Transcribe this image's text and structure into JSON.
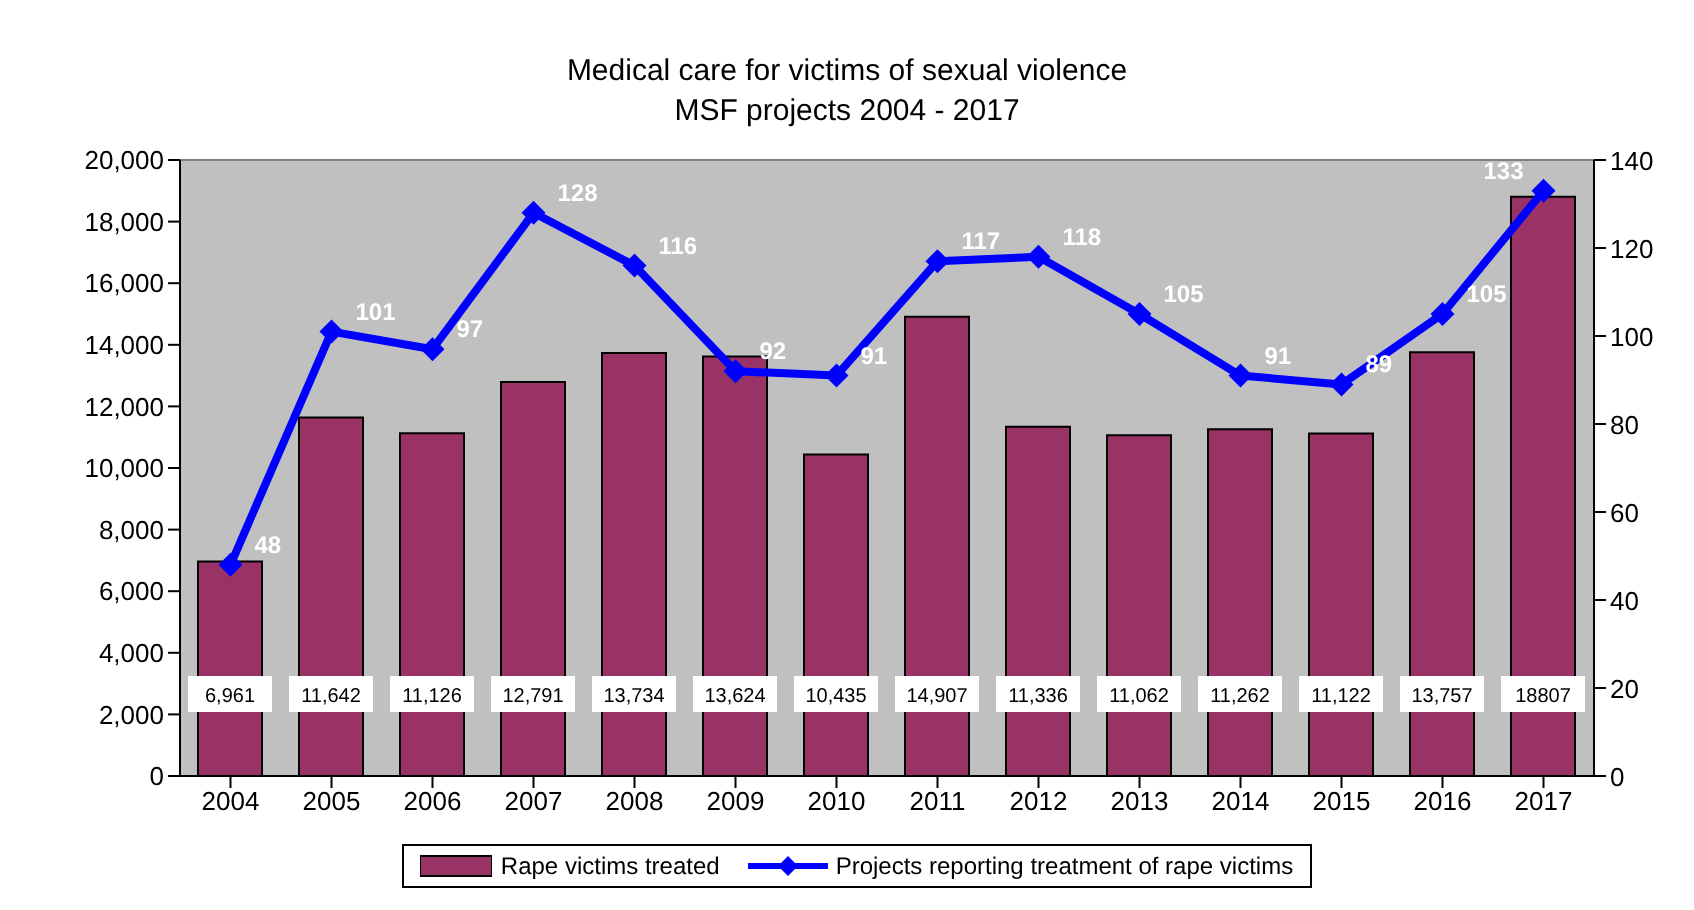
{
  "chart_data": {
    "type": "bar",
    "title": "Medical care for victims of sexual violence",
    "subtitle": "MSF projects 2004 - 2017",
    "categories": [
      "2004",
      "2005",
      "2006",
      "2007",
      "2008",
      "2009",
      "2010",
      "2011",
      "2012",
      "2013",
      "2014",
      "2015",
      "2016",
      "2017"
    ],
    "series": [
      {
        "name": "Rape victims treated",
        "color": "#993366",
        "values": [
          6961,
          11642,
          11126,
          12791,
          13734,
          13624,
          10435,
          14907,
          11336,
          11062,
          11262,
          11122,
          13757,
          18807
        ],
        "value_labels": [
          "6,961",
          "11,642",
          "11,126",
          "12,791",
          "13,734",
          "13,624",
          "10,435",
          "14,907",
          "11,336",
          "11,062",
          "11,262",
          "11,122",
          "13,757",
          "18807"
        ]
      },
      {
        "name": "Projects reporting treatment of rape victims",
        "type": "line",
        "axis": "y2",
        "color": "#0000ff",
        "marker": "diamond",
        "values": [
          48,
          101,
          97,
          128,
          116,
          92,
          91,
          117,
          118,
          105,
          91,
          89,
          105,
          133
        ],
        "value_labels": [
          "48",
          "101",
          "97",
          "128",
          "116",
          "92",
          "91",
          "117",
          "118",
          "105",
          "91",
          "89",
          "105",
          "133"
        ]
      }
    ],
    "ylim": [
      0,
      20000
    ],
    "yticks": [
      {
        "value": 0,
        "label": "0"
      },
      {
        "value": 2000,
        "label": "2,000"
      },
      {
        "value": 4000,
        "label": "4,000"
      },
      {
        "value": 6000,
        "label": "6,000"
      },
      {
        "value": 8000,
        "label": "8,000"
      },
      {
        "value": 10000,
        "label": "10,000"
      },
      {
        "value": 12000,
        "label": "12,000"
      },
      {
        "value": 14000,
        "label": "14,000"
      },
      {
        "value": 16000,
        "label": "16,000"
      },
      {
        "value": 18000,
        "label": "18,000"
      },
      {
        "value": 20000,
        "label": "20,000"
      }
    ],
    "y2lim": [
      0,
      140
    ],
    "y2ticks": [
      0,
      20,
      40,
      60,
      80,
      100,
      120,
      140
    ],
    "grid": false,
    "legend": "bottom"
  }
}
